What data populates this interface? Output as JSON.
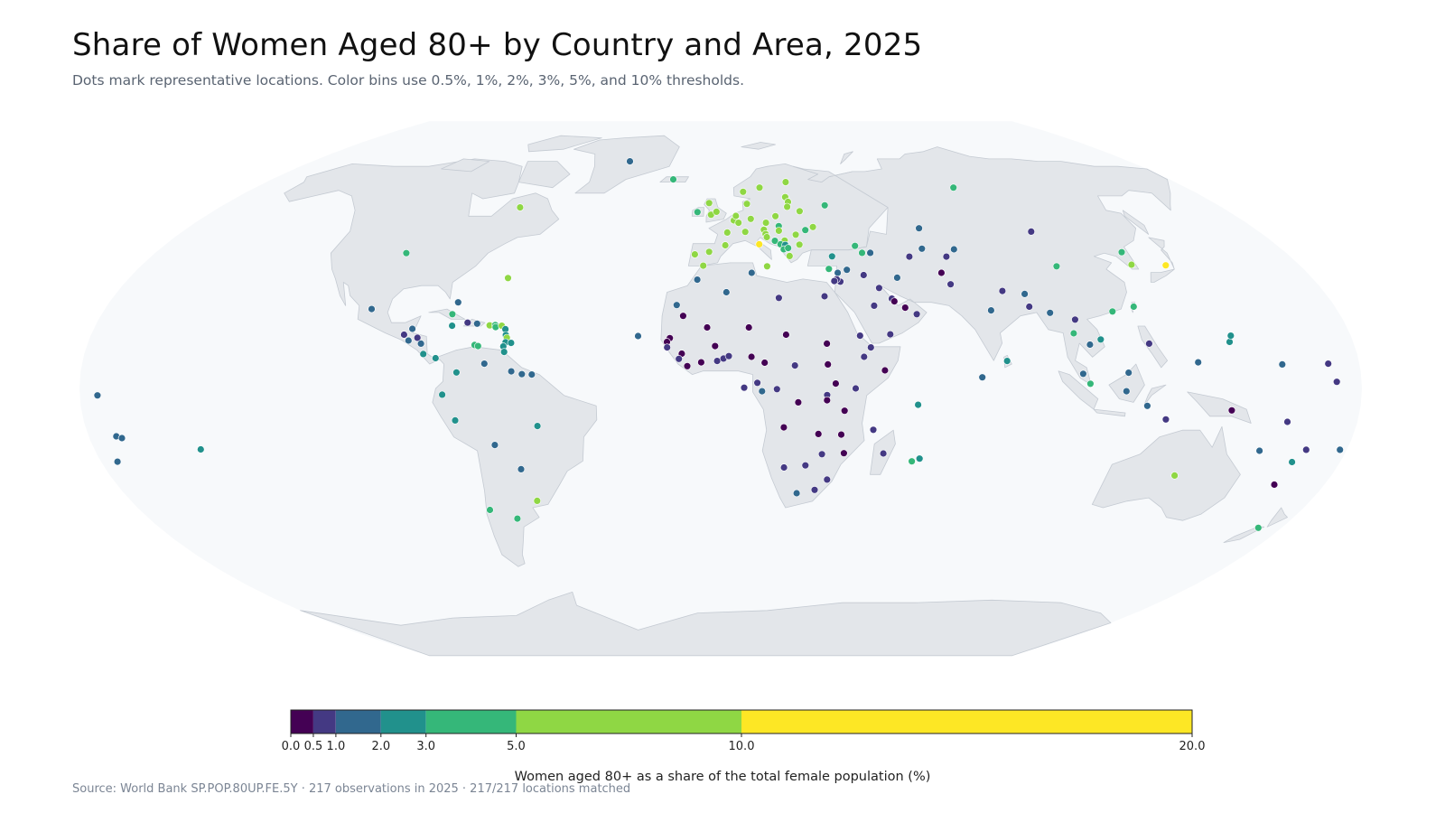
{
  "title": "Share of Women Aged 80+ by Country and Area, 2025",
  "subtitle": "Dots mark representative locations. Color bins use 0.5%, 1%, 2%, 3%, 5%, and 10% thresholds.",
  "source": "Source: World Bank SP.POP.80UP.FE.5Y · 217 observations in 2025 · 217/217 locations matched",
  "colorbar": {
    "title": "Women aged 80+ as a share of the total female population (%)",
    "range": [
      0,
      20
    ],
    "ticks": [
      "0.0",
      "0.5",
      "1.0",
      "2.0",
      "3.0",
      "5.0",
      "10.0",
      "20.0"
    ],
    "bins": [
      {
        "from": 0,
        "to": 0.5,
        "color": "#440154"
      },
      {
        "from": 0.5,
        "to": 1,
        "color": "#443983"
      },
      {
        "from": 1,
        "to": 2,
        "color": "#31688e"
      },
      {
        "from": 2,
        "to": 3,
        "color": "#21918c"
      },
      {
        "from": 3,
        "to": 5,
        "color": "#35b779"
      },
      {
        "from": 5,
        "to": 10,
        "color": "#8fd744"
      },
      {
        "from": 10,
        "to": 20,
        "color": "#fde725"
      }
    ]
  },
  "map_style": {
    "ocean": "#f7f9fb",
    "land": "#e3e6ea",
    "border": "#c4cad2"
  },
  "dots": [
    {
      "lon": -40,
      "lat": 72,
      "v": 1.5
    },
    {
      "lon": -19,
      "lat": 65,
      "v": 4.2
    },
    {
      "lon": -100,
      "lat": 40,
      "v": 3.8
    },
    {
      "lon": -72,
      "lat": 55,
      "v": 6.5
    },
    {
      "lon": -64.7,
      "lat": 32.3,
      "v": 7.0
    },
    {
      "lon": -88.5,
      "lat": 17.2,
      "v": 1.4
    },
    {
      "lon": -102,
      "lat": 23,
      "v": 1.6
    },
    {
      "lon": -90.5,
      "lat": 15.5,
      "v": 0.8
    },
    {
      "lon": -88.9,
      "lat": 13.8,
      "v": 1.7
    },
    {
      "lon": -86.5,
      "lat": 14.6,
      "v": 0.9
    },
    {
      "lon": -85.2,
      "lat": 12.9,
      "v": 1.0
    },
    {
      "lon": -84.1,
      "lat": 9.9,
      "v": 2.6
    },
    {
      "lon": -80.5,
      "lat": 8.7,
      "v": 2.2
    },
    {
      "lon": -78,
      "lat": 21.5,
      "v": 3.6
    },
    {
      "lon": -77.3,
      "lat": 18.1,
      "v": 2.4
    },
    {
      "lon": -73,
      "lat": 19,
      "v": 0.8
    },
    {
      "lon": -70.2,
      "lat": 18.7,
      "v": 1.3
    },
    {
      "lon": -77.3,
      "lat": 25.0,
      "v": 1.9
    },
    {
      "lon": -66.5,
      "lat": 18.2,
      "v": 6.2
    },
    {
      "lon": -64.9,
      "lat": 18.3,
      "v": 4.0
    },
    {
      "lon": -64.7,
      "lat": 17.7,
      "v": 3.3
    },
    {
      "lon": -63.0,
      "lat": 18.1,
      "v": 5.5
    },
    {
      "lon": -61.8,
      "lat": 17.1,
      "v": 2.3
    },
    {
      "lon": -61.4,
      "lat": 15.4,
      "v": 2.4
    },
    {
      "lon": -61.0,
      "lat": 14.6,
      "v": 6.5
    },
    {
      "lon": -61.2,
      "lat": 13.3,
      "v": 2.2
    },
    {
      "lon": -59.6,
      "lat": 13.1,
      "v": 2.8
    },
    {
      "lon": -61.7,
      "lat": 12.1,
      "v": 2.0
    },
    {
      "lon": -61.3,
      "lat": 10.5,
      "v": 2.6
    },
    {
      "lon": -69.9,
      "lat": 12.5,
      "v": 3.4
    },
    {
      "lon": -68.9,
      "lat": 12.2,
      "v": 3.2
    },
    {
      "lon": -74.3,
      "lat": 4.6,
      "v": 2.1
    },
    {
      "lon": -66.6,
      "lat": 7.1,
      "v": 1.5
    },
    {
      "lon": -58.9,
      "lat": 4.9,
      "v": 1.3
    },
    {
      "lon": -55.9,
      "lat": 4.1,
      "v": 1.6
    },
    {
      "lon": -53.1,
      "lat": 4.0,
      "v": 1.5
    },
    {
      "lon": -78.2,
      "lat": -1.8,
      "v": 2.3
    },
    {
      "lon": -75.0,
      "lat": -9.2,
      "v": 2.6
    },
    {
      "lon": -51.9,
      "lat": -10.8,
      "v": 2.5
    },
    {
      "lon": -64.7,
      "lat": -16.3,
      "v": 1.4
    },
    {
      "lon": -58.4,
      "lat": -23.4,
      "v": 1.6
    },
    {
      "lon": -71.5,
      "lat": -35.7,
      "v": 3.9
    },
    {
      "lon": -64.0,
      "lat": -38.4,
      "v": 3.7
    },
    {
      "lon": -56.0,
      "lat": -32.9,
      "v": 5.6
    },
    {
      "lon": -172.1,
      "lat": -13.8,
      "v": 1.4
    },
    {
      "lon": -170.7,
      "lat": -14.3,
      "v": 1.5
    },
    {
      "lon": -175.2,
      "lat": -21.2,
      "v": 1.5
    },
    {
      "lon": -149.4,
      "lat": -17.6,
      "v": 2.5
    },
    {
      "lon": 178.0,
      "lat": -17.7,
      "v": 1.3
    },
    {
      "lon": 168.3,
      "lat": -17.7,
      "v": 0.7
    },
    {
      "lon": 160.2,
      "lat": -9.6,
      "v": 0.6
    },
    {
      "lon": 166.0,
      "lat": -21.3,
      "v": 2.3
    },
    {
      "lon": 171.2,
      "lat": 7.1,
      "v": 0.8
    },
    {
      "lon": 173.0,
      "lat": 1.9,
      "v": 0.6
    },
    {
      "lon": 158.2,
      "lat": 6.9,
      "v": 1.0
    },
    {
      "lon": 134.6,
      "lat": 7.5,
      "v": 1.5
    },
    {
      "lon": 144.8,
      "lat": 13.4,
      "v": 2.5
    },
    {
      "lon": 145.7,
      "lat": 15.2,
      "v": 2.2
    },
    {
      "lon": 143.9,
      "lat": -6.3,
      "v": 0.4
    },
    {
      "lon": 125.7,
      "lat": -8.9,
      "v": 0.6
    },
    {
      "lon": 133.8,
      "lat": -25.3,
      "v": 5.8
    },
    {
      "lon": 172.5,
      "lat": -41.3,
      "v": 4.1
    },
    {
      "lon": -175.0,
      "lat": -2.0,
      "v": 1.3
    },
    {
      "lon": 165.0,
      "lat": -28.0,
      "v": 0.4
    },
    {
      "lon": 155.0,
      "lat": -18.0,
      "v": 1.0
    },
    {
      "lon": -8.2,
      "lat": 53.4,
      "v": 4.0
    },
    {
      "lon": -3.4,
      "lat": 52.5,
      "v": 6.2
    },
    {
      "lon": -1.5,
      "lat": 53.5,
      "v": 6.4
    },
    {
      "lon": -4.2,
      "lat": 56.5,
      "v": 6.4
    },
    {
      "lon": 8.5,
      "lat": 60.5,
      "v": 6.0
    },
    {
      "lon": 15.0,
      "lat": 62.0,
      "v": 6.8
    },
    {
      "lon": 25.7,
      "lat": 64.0,
      "v": 6.3
    },
    {
      "lon": 24.0,
      "lat": 58.6,
      "v": 5.9
    },
    {
      "lon": 24.6,
      "lat": 56.9,
      "v": 6.3
    },
    {
      "lon": 23.9,
      "lat": 55.2,
      "v": 6.1
    },
    {
      "lon": 28.0,
      "lat": 53.7,
      "v": 5.2
    },
    {
      "lon": 19.1,
      "lat": 52.0,
      "v": 6.0
    },
    {
      "lon": 10.4,
      "lat": 51.1,
      "v": 7.5
    },
    {
      "lon": 9.5,
      "lat": 56.2,
      "v": 5.8
    },
    {
      "lon": 4.5,
      "lat": 50.6,
      "v": 6.3
    },
    {
      "lon": 5.3,
      "lat": 52.1,
      "v": 5.7
    },
    {
      "lon": 6.1,
      "lat": 49.8,
      "v": 5.0
    },
    {
      "lon": 2.2,
      "lat": 46.6,
      "v": 7.2
    },
    {
      "lon": 8.2,
      "lat": 46.8,
      "v": 6.4
    },
    {
      "lon": 14.5,
      "lat": 47.5,
      "v": 6.3
    },
    {
      "lon": 15.5,
      "lat": 49.8,
      "v": 5.2
    },
    {
      "lon": 19.7,
      "lat": 48.7,
      "v": 4.5
    },
    {
      "lon": 19.5,
      "lat": 47.2,
      "v": 5.6
    },
    {
      "lon": 24.9,
      "lat": 45.9,
      "v": 5.2
    },
    {
      "lon": 31.2,
      "lat": 48.4,
      "v": 5.7
    },
    {
      "lon": 28.4,
      "lat": 47.4,
      "v": 3.7
    },
    {
      "lon": 12.5,
      "lat": 42.8,
      "v": 10.5
    },
    {
      "lon": 14.9,
      "lat": 46.1,
      "v": 6.8
    },
    {
      "lon": 15.2,
      "lat": 45.1,
      "v": 6.2
    },
    {
      "lon": 17.7,
      "lat": 43.9,
      "v": 4.4
    },
    {
      "lon": 20.9,
      "lat": 44.0,
      "v": 5.4
    },
    {
      "lon": 19.4,
      "lat": 42.8,
      "v": 3.8
    },
    {
      "lon": 20.9,
      "lat": 42.6,
      "v": 2.4
    },
    {
      "lon": 20.2,
      "lat": 41.2,
      "v": 3.5
    },
    {
      "lon": 21.7,
      "lat": 41.6,
      "v": 3.4
    },
    {
      "lon": 25.5,
      "lat": 42.7,
      "v": 5.2
    },
    {
      "lon": 21.8,
      "lat": 39.1,
      "v": 7.3
    },
    {
      "lon": -3.7,
      "lat": 40.4,
      "v": 7.0
    },
    {
      "lon": -8.2,
      "lat": 39.6,
      "v": 7.6
    },
    {
      "lon": 1.5,
      "lat": 42.5,
      "v": 5.3
    },
    {
      "lon": 14.4,
      "lat": 35.9,
      "v": 5.7
    },
    {
      "lon": 33.4,
      "lat": 35.1,
      "v": 4.6
    },
    {
      "lon": -5.4,
      "lat": 36.1,
      "v": 5.6
    },
    {
      "lon": 37.6,
      "lat": 55.7,
      "v": 4.1
    },
    {
      "lon": 90.0,
      "lat": 62.0,
      "v": 4.0
    },
    {
      "lon": 43.4,
      "lat": 42.3,
      "v": 4.6
    },
    {
      "lon": 45.0,
      "lat": 40.1,
      "v": 3.4
    },
    {
      "lon": 47.6,
      "lat": 40.1,
      "v": 1.8
    },
    {
      "lon": 35.2,
      "lat": 39.0,
      "v": 2.3
    },
    {
      "lon": 66.9,
      "lat": 48.0,
      "v": 1.7
    },
    {
      "lon": 64.6,
      "lat": 41.4,
      "v": 1.0
    },
    {
      "lon": 59.6,
      "lat": 38.9,
      "v": 0.8
    },
    {
      "lon": 74.8,
      "lat": 41.2,
      "v": 1.0
    },
    {
      "lon": 71.3,
      "lat": 38.9,
      "v": 0.7
    },
    {
      "lon": 103.8,
      "lat": 46.9,
      "v": 0.8
    },
    {
      "lon": 104.2,
      "lat": 35.9,
      "v": 4.0
    },
    {
      "lon": 127.8,
      "lat": 40.3,
      "v": 3.2
    },
    {
      "lon": 127.8,
      "lat": 36.4,
      "v": 5.5
    },
    {
      "lon": 138.3,
      "lat": 36.2,
      "v": 12.0
    },
    {
      "lon": 121.0,
      "lat": 23.7,
      "v": 3.5
    },
    {
      "lon": 114.2,
      "lat": 22.3,
      "v": 3.0
    },
    {
      "lon": 53.7,
      "lat": 32.4,
      "v": 1.7
    },
    {
      "lon": 43.7,
      "lat": 33.2,
      "v": 0.7
    },
    {
      "lon": 38.9,
      "lat": 34.8,
      "v": 1.2
    },
    {
      "lon": 35.9,
      "lat": 33.9,
      "v": 1.9
    },
    {
      "lon": 35.0,
      "lat": 31.5,
      "v": 2.6
    },
    {
      "lon": 36.2,
      "lat": 31.2,
      "v": 0.8
    },
    {
      "lon": 35.2,
      "lat": 31.9,
      "v": 0.9
    },
    {
      "lon": 34.4,
      "lat": 31.4,
      "v": 0.6
    },
    {
      "lon": 45.0,
      "lat": 24.0,
      "v": 0.5
    },
    {
      "lon": 47.5,
      "lat": 29.3,
      "v": 0.6
    },
    {
      "lon": 50.6,
      "lat": 26.1,
      "v": 0.7
    },
    {
      "lon": 51.2,
      "lat": 25.3,
      "v": 0.3
    },
    {
      "lon": 54.0,
      "lat": 23.4,
      "v": 0.2
    },
    {
      "lon": 57.0,
      "lat": 21.5,
      "v": 0.5
    },
    {
      "lon": 48.5,
      "lat": 15.6,
      "v": 0.5
    },
    {
      "lon": 67.7,
      "lat": 33.9,
      "v": 0.4
    },
    {
      "lon": 69.3,
      "lat": 30.4,
      "v": 0.8
    },
    {
      "lon": 78.9,
      "lat": 22.6,
      "v": 1.2
    },
    {
      "lon": 84.1,
      "lat": 28.4,
      "v": 0.9
    },
    {
      "lon": 90.4,
      "lat": 27.5,
      "v": 1.0
    },
    {
      "lon": 90.4,
      "lat": 23.7,
      "v": 0.9
    },
    {
      "lon": 95.9,
      "lat": 21.9,
      "v": 1.1
    },
    {
      "lon": 101.0,
      "lat": 15.9,
      "v": 3.3
    },
    {
      "lon": 102.5,
      "lat": 19.9,
      "v": 0.9
    },
    {
      "lon": 104.9,
      "lat": 12.6,
      "v": 1.2
    },
    {
      "lon": 108.3,
      "lat": 14.1,
      "v": 2.5
    },
    {
      "lon": 101.9,
      "lat": 4.2,
      "v": 1.4
    },
    {
      "lon": 103.8,
      "lat": 1.35,
      "v": 3.2
    },
    {
      "lon": 114.7,
      "lat": 4.5,
      "v": 1.5
    },
    {
      "lon": 121.8,
      "lat": 12.9,
      "v": 0.9
    },
    {
      "lon": 113.9,
      "lat": -0.8,
      "v": 1.4
    },
    {
      "lon": 120.0,
      "lat": -5.0,
      "v": 1.5
    },
    {
      "lon": 80.8,
      "lat": 7.9,
      "v": 2.4
    },
    {
      "lon": 73.5,
      "lat": 3.2,
      "v": 1.5
    },
    {
      "lon": 55.5,
      "lat": -4.7,
      "v": 2.2
    },
    {
      "lon": 57.6,
      "lat": -20.3,
      "v": 2.6
    },
    {
      "lon": 55.5,
      "lat": -21.1,
      "v": 3.0
    },
    {
      "lon": 43.3,
      "lat": -11.9,
      "v": 0.8
    },
    {
      "lon": 46.9,
      "lat": -18.8,
      "v": 0.5
    },
    {
      "lon": -7.1,
      "lat": 31.8,
      "v": 1.5
    },
    {
      "lon": 1.7,
      "lat": 28.0,
      "v": 1.1
    },
    {
      "lon": 9.5,
      "lat": 33.9,
      "v": 1.8
    },
    {
      "lon": 17.2,
      "lat": 26.3,
      "v": 0.9
    },
    {
      "lon": 30.8,
      "lat": 26.8,
      "v": 0.9
    },
    {
      "lon": -12.9,
      "lat": 24.2,
      "v": 1.3
    },
    {
      "lon": -23.6,
      "lat": 15.1,
      "v": 1.6
    },
    {
      "lon": -10.9,
      "lat": 21.0,
      "v": 0.4
    },
    {
      "lon": -3.9,
      "lat": 17.6,
      "v": 0.3
    },
    {
      "lon": 8.1,
      "lat": 17.6,
      "v": 0.2
    },
    {
      "lon": 18.7,
      "lat": 15.5,
      "v": 0.3
    },
    {
      "lon": 30.2,
      "lat": 12.9,
      "v": 0.4
    },
    {
      "lon": 39.8,
      "lat": 15.2,
      "v": 0.6
    },
    {
      "lon": 42.6,
      "lat": 11.8,
      "v": 0.5
    },
    {
      "lon": 46.2,
      "lat": 5.2,
      "v": 0.3
    },
    {
      "lon": 40.5,
      "lat": 9.1,
      "v": 0.6
    },
    {
      "lon": -14.5,
      "lat": 14.5,
      "v": 0.4
    },
    {
      "lon": -15.3,
      "lat": 13.4,
      "v": 0.3
    },
    {
      "lon": -15.2,
      "lat": 11.8,
      "v": 0.5
    },
    {
      "lon": -11.0,
      "lat": 10.0,
      "v": 0.4
    },
    {
      "lon": -11.8,
      "lat": 8.5,
      "v": 0.6
    },
    {
      "lon": -9.4,
      "lat": 6.4,
      "v": 0.4
    },
    {
      "lon": -5.5,
      "lat": 7.5,
      "v": 0.4
    },
    {
      "lon": -1.6,
      "lat": 12.2,
      "v": 0.4
    },
    {
      "lon": -1.0,
      "lat": 7.9,
      "v": 0.6
    },
    {
      "lon": 0.8,
      "lat": 8.6,
      "v": 0.6
    },
    {
      "lon": 2.3,
      "lat": 9.3,
      "v": 0.5
    },
    {
      "lon": 8.7,
      "lat": 9.1,
      "v": 0.3
    },
    {
      "lon": 12.4,
      "lat": 7.4,
      "v": 0.4
    },
    {
      "lon": 20.9,
      "lat": 6.6,
      "v": 0.5
    },
    {
      "lon": 30.2,
      "lat": 6.9,
      "v": 0.3
    },
    {
      "lon": 10.3,
      "lat": 1.6,
      "v": 0.7
    },
    {
      "lon": 11.6,
      "lat": -0.8,
      "v": 1.0
    },
    {
      "lon": 15.8,
      "lat": -0.2,
      "v": 0.6
    },
    {
      "lon": 21.8,
      "lat": -4.0,
      "v": 0.3
    },
    {
      "lon": 6.6,
      "lat": 0.2,
      "v": 0.8
    },
    {
      "lon": 32.3,
      "lat": 1.4,
      "v": 0.3
    },
    {
      "lon": 37.9,
      "lat": 0.0,
      "v": 0.5
    },
    {
      "lon": 29.9,
      "lat": -1.9,
      "v": 0.6
    },
    {
      "lon": 29.9,
      "lat": -3.4,
      "v": 0.4
    },
    {
      "lon": 34.9,
      "lat": -6.4,
      "v": 0.4
    },
    {
      "lon": 17.9,
      "lat": -11.2,
      "v": 0.3
    },
    {
      "lon": 27.8,
      "lat": -13.1,
      "v": 0.3
    },
    {
      "lon": 34.3,
      "lat": -13.3,
      "v": 0.4
    },
    {
      "lon": 35.5,
      "lat": -18.7,
      "v": 0.3
    },
    {
      "lon": 29.2,
      "lat": -19.0,
      "v": 0.5
    },
    {
      "lon": 18.5,
      "lat": -22.9,
      "v": 0.7
    },
    {
      "lon": 24.7,
      "lat": -22.3,
      "v": 0.7
    },
    {
      "lon": 22.9,
      "lat": -30.6,
      "v": 1.3
    },
    {
      "lon": 28.2,
      "lat": -29.6,
      "v": 0.9
    },
    {
      "lon": 31.5,
      "lat": -26.5,
      "v": 0.8
    }
  ]
}
